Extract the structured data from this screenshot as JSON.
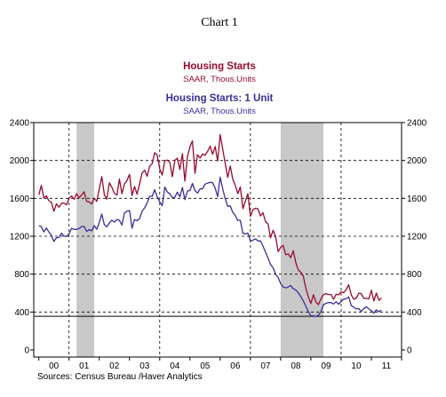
{
  "chart_data": {
    "type": "line",
    "title": "Chart 1",
    "source": "Sources: Census Bureau /Haver Analytics",
    "xlim": [
      "1999-11",
      "2012-01"
    ],
    "ylim": [
      0,
      2400
    ],
    "y_ticks": [
      0,
      400,
      800,
      1200,
      1600,
      2000,
      2400
    ],
    "x_ticks": [
      {
        "label": "00",
        "year": 2000
      },
      {
        "label": "01",
        "year": 2001
      },
      {
        "label": "02",
        "year": 2002
      },
      {
        "label": "03",
        "year": 2003
      },
      {
        "label": "04",
        "year": 2004
      },
      {
        "label": "05",
        "year": 2005
      },
      {
        "label": "06",
        "year": 2006
      },
      {
        "label": "07",
        "year": 2007
      },
      {
        "label": "08",
        "year": 2008
      },
      {
        "label": "09",
        "year": 2009
      },
      {
        "label": "10",
        "year": 2010
      },
      {
        "label": "11",
        "year": 2011
      }
    ],
    "grid": true,
    "horizontal_gridlines": [
      400,
      800,
      1200,
      1600,
      2000
    ],
    "vertical_gridlines": [
      2001,
      2004,
      2007,
      2010
    ],
    "reference_line": 355,
    "shaded_periods": [
      [
        "2001-04",
        "2001-11"
      ],
      [
        "2008-01",
        "2009-06"
      ]
    ],
    "shade_color": "#c8c8c8",
    "x": [
      "2000-01",
      "2000-02",
      "2000-03",
      "2000-04",
      "2000-05",
      "2000-06",
      "2000-07",
      "2000-08",
      "2000-09",
      "2000-10",
      "2000-11",
      "2000-12",
      "2001-01",
      "2001-02",
      "2001-03",
      "2001-04",
      "2001-05",
      "2001-06",
      "2001-07",
      "2001-08",
      "2001-09",
      "2001-10",
      "2001-11",
      "2001-12",
      "2002-01",
      "2002-02",
      "2002-03",
      "2002-04",
      "2002-05",
      "2002-06",
      "2002-07",
      "2002-08",
      "2002-09",
      "2002-10",
      "2002-11",
      "2002-12",
      "2003-01",
      "2003-02",
      "2003-03",
      "2003-04",
      "2003-05",
      "2003-06",
      "2003-07",
      "2003-08",
      "2003-09",
      "2003-10",
      "2003-11",
      "2003-12",
      "2004-01",
      "2004-02",
      "2004-03",
      "2004-04",
      "2004-05",
      "2004-06",
      "2004-07",
      "2004-08",
      "2004-09",
      "2004-10",
      "2004-11",
      "2004-12",
      "2005-01",
      "2005-02",
      "2005-03",
      "2005-04",
      "2005-05",
      "2005-06",
      "2005-07",
      "2005-08",
      "2005-09",
      "2005-10",
      "2005-11",
      "2005-12",
      "2006-01",
      "2006-02",
      "2006-03",
      "2006-04",
      "2006-05",
      "2006-06",
      "2006-07",
      "2006-08",
      "2006-09",
      "2006-10",
      "2006-11",
      "2006-12",
      "2007-01",
      "2007-02",
      "2007-03",
      "2007-04",
      "2007-05",
      "2007-06",
      "2007-07",
      "2007-08",
      "2007-09",
      "2007-10",
      "2007-11",
      "2007-12",
      "2008-01",
      "2008-02",
      "2008-03",
      "2008-04",
      "2008-05",
      "2008-06",
      "2008-07",
      "2008-08",
      "2008-09",
      "2008-10",
      "2008-11",
      "2008-12",
      "2009-01",
      "2009-02",
      "2009-03",
      "2009-04",
      "2009-05",
      "2009-06",
      "2009-07",
      "2009-08",
      "2009-09",
      "2009-10",
      "2009-11",
      "2009-12",
      "2010-01",
      "2010-02",
      "2010-03",
      "2010-04",
      "2010-05",
      "2010-06",
      "2010-07",
      "2010-08",
      "2010-09",
      "2010-10",
      "2010-11",
      "2010-12",
      "2011-01",
      "2011-02",
      "2011-03",
      "2011-04",
      "2011-05"
    ],
    "series": [
      {
        "name": "Housing Starts",
        "units": "SAAR, Thous.Units",
        "color": "#9a0a30",
        "values": [
          1636,
          1737,
          1604,
          1626,
          1575,
          1559,
          1463,
          1541,
          1507,
          1549,
          1551,
          1532,
          1600,
          1625,
          1590,
          1649,
          1605,
          1636,
          1670,
          1567,
          1562,
          1540,
          1602,
          1568,
          1698,
          1829,
          1642,
          1592,
          1764,
          1717,
          1655,
          1633,
          1804,
          1648,
          1753,
          1788,
          1853,
          1629,
          1726,
          1643,
          1751,
          1867,
          1897,
          1833,
          1939,
          1967,
          2083,
          2057,
          1911,
          1846,
          1998,
          2003,
          1981,
          1828,
          2002,
          2024,
          1905,
          2072,
          1782,
          2042,
          2144,
          2207,
          1864,
          2061,
          2025,
          2068,
          2054,
          2095,
          2151,
          2065,
          2147,
          1994,
          2273,
          2119,
          1969,
          1821,
          1942,
          1802,
          1737,
          1650,
          1720,
          1491,
          1570,
          1649,
          1409,
          1480,
          1495,
          1490,
          1415,
          1448,
          1354,
          1330,
          1183,
          1264,
          1197,
          1037,
          1084,
          1103,
          1005,
          1013,
          973,
          1046,
          923,
          844,
          820,
          777,
          652,
          560,
          490,
          582,
          505,
          478,
          540,
          585,
          594,
          586,
          585,
          534,
          588,
          581,
          614,
          604,
          636,
          687,
          583,
          536,
          546,
          599,
          594,
          543,
          545,
          539,
          630,
          517,
          600,
          523,
          549
        ]
      },
      {
        "name": "Housing Starts: 1 Unit",
        "units": "SAAR, Thous.Units",
        "color": "#3a2e9e",
        "values": [
          1309,
          1303,
          1245,
          1287,
          1245,
          1209,
          1145,
          1183,
          1187,
          1232,
          1201,
          1197,
          1223,
          1283,
          1272,
          1272,
          1282,
          1302,
          1304,
          1251,
          1270,
          1255,
          1313,
          1274,
          1344,
          1434,
          1322,
          1300,
          1341,
          1371,
          1349,
          1377,
          1369,
          1318,
          1444,
          1464,
          1471,
          1284,
          1376,
          1364,
          1387,
          1463,
          1500,
          1550,
          1622,
          1622,
          1691,
          1616,
          1562,
          1523,
          1719,
          1667,
          1649,
          1607,
          1611,
          1666,
          1616,
          1716,
          1586,
          1678,
          1683,
          1757,
          1682,
          1656,
          1700,
          1701,
          1750,
          1761,
          1769,
          1765,
          1708,
          1617,
          1823,
          1701,
          1595,
          1517,
          1521,
          1452,
          1418,
          1367,
          1369,
          1231,
          1226,
          1233,
          1148,
          1159,
          1173,
          1151,
          1150,
          1096,
          1031,
          969,
          903,
          867,
          798,
          764,
          699,
          666,
          654,
          664,
          681,
          645,
          634,
          605,
          562,
          517,
          463,
          403,
          360,
          360,
          353,
          367,
          404,
          478,
          491,
          501,
          500,
          485,
          509,
          483,
          510,
          536,
          540,
          560,
          468,
          451,
          432,
          438,
          404,
          438,
          457,
          432,
          413,
          389,
          423,
          402,
          422
        ]
      }
    ]
  }
}
